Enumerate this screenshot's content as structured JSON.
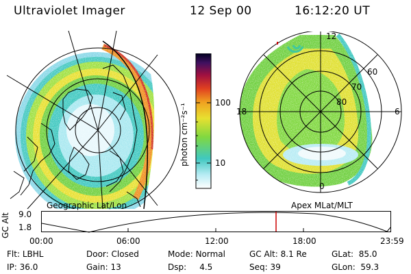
{
  "header": {
    "title": "Ultraviolet Imager",
    "date": "12 Sep 00",
    "time": "16:12:20 UT"
  },
  "left_panel": {
    "label": "Geographic Lat/Lon"
  },
  "right_panel": {
    "label": "Apex MLat/MLT",
    "mlt_labels": {
      "top": "12",
      "left": "18",
      "right": "6",
      "bottom": "0"
    },
    "lat_labels": [
      "60",
      "70",
      "80"
    ]
  },
  "colorbar": {
    "unit_label": "photon cm⁻²s⁻¹",
    "ticks": [
      "100",
      "10"
    ]
  },
  "altitude_plot": {
    "label": "GC Alt",
    "ytick_top": "9.0",
    "ytick_bottom": "1.8",
    "xticks": [
      "00:00",
      "06:00",
      "12:00",
      "18:00",
      "23:59"
    ],
    "current_time_marker_color": "#cc0000"
  },
  "footer": {
    "row1": [
      {
        "key": "Flt:",
        "value": "LBHL"
      },
      {
        "key": "Door:",
        "value": "Closed"
      },
      {
        "key": "Mode:",
        "value": "Normal"
      },
      {
        "key": "GC Alt:",
        "value": "8.1 Re"
      },
      {
        "key": "GLat:",
        "value": "85.0"
      }
    ],
    "row2": [
      {
        "key": "IP:",
        "value": "36.0"
      },
      {
        "key": "Gain:",
        "value": "13"
      },
      {
        "key": "Dsp:",
        "value": "4.5"
      },
      {
        "key": "Seq:",
        "value": "39"
      },
      {
        "key": "GLon:",
        "value": "59.3"
      }
    ]
  }
}
